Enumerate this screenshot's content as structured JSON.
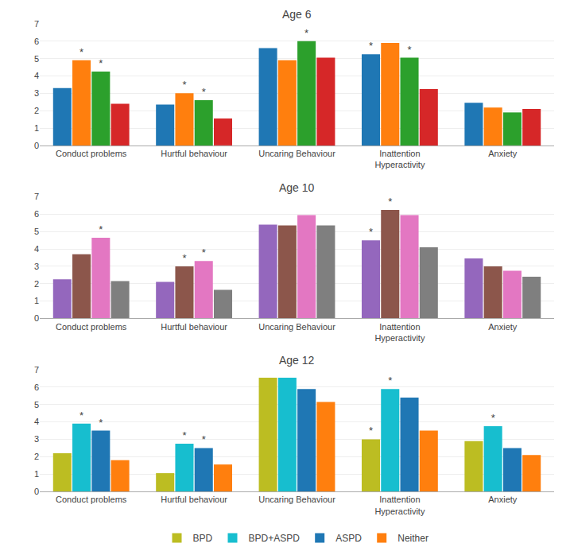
{
  "chart_data": [
    {
      "type": "bar",
      "title": "Age 6",
      "categories": [
        "Conduct problems",
        "Hurtful behaviour",
        "Uncaring Behaviour",
        "Inattention\nHyperactivity",
        "Anxiety"
      ],
      "series": [
        {
          "name": "BPD",
          "values": [
            3.3,
            2.35,
            5.6,
            5.25,
            2.45
          ]
        },
        {
          "name": "BPD+ASPD",
          "values": [
            4.9,
            3.0,
            4.9,
            5.9,
            2.18
          ]
        },
        {
          "name": "ASPD",
          "values": [
            4.25,
            2.6,
            6.0,
            5.05,
            1.9
          ]
        },
        {
          "name": "Neither",
          "values": [
            2.4,
            1.55,
            5.05,
            3.25,
            2.1
          ]
        }
      ],
      "annotations": [
        {
          "text": "*",
          "category": "Conduct problems",
          "series": "BPD+ASPD"
        },
        {
          "text": "*",
          "category": "Conduct problems",
          "series": "ASPD"
        },
        {
          "text": "*",
          "category": "Hurtful behaviour",
          "series": "BPD+ASPD"
        },
        {
          "text": "*",
          "category": "Hurtful behaviour",
          "series": "ASPD"
        },
        {
          "text": "*",
          "category": "Uncaring Behaviour",
          "series": "ASPD"
        },
        {
          "text": "*",
          "category": "Inattention\nHyperactivity",
          "series": "BPD"
        },
        {
          "text": "*",
          "category": "Inattention\nHyperactivity",
          "series": "ASPD"
        }
      ],
      "ylim": [
        0,
        7
      ],
      "yticks": [
        0,
        1,
        2,
        3,
        4,
        5,
        6,
        7
      ],
      "grid": true
    },
    {
      "type": "bar",
      "title": "Age 10",
      "categories": [
        "Conduct problems",
        "Hurtful behaviour",
        "Uncaring Behaviour",
        "Inattention\nHyperactivity",
        "Anxiety"
      ],
      "series": [
        {
          "name": "BPD",
          "values": [
            2.25,
            2.1,
            5.4,
            4.5,
            3.45
          ]
        },
        {
          "name": "BPD+ASPD",
          "values": [
            3.7,
            3.0,
            5.35,
            6.25,
            3.0
          ]
        },
        {
          "name": "ASPD",
          "values": [
            4.65,
            3.3,
            5.95,
            5.95,
            2.75
          ]
        },
        {
          "name": "Neither",
          "values": [
            2.15,
            1.65,
            5.35,
            4.1,
            2.4
          ]
        }
      ],
      "annotations": [
        {
          "text": "*",
          "category": "Conduct problems",
          "series": "ASPD"
        },
        {
          "text": "*",
          "category": "Hurtful behaviour",
          "series": "BPD+ASPD"
        },
        {
          "text": "*",
          "category": "Hurtful behaviour",
          "series": "ASPD"
        },
        {
          "text": "*",
          "category": "Inattention\nHyperactivity",
          "series": "BPD"
        },
        {
          "text": "*",
          "category": "Inattention\nHyperactivity",
          "series": "BPD+ASPD"
        }
      ],
      "ylim": [
        0,
        7
      ],
      "yticks": [
        0,
        1,
        2,
        3,
        4,
        5,
        6,
        7
      ],
      "grid": true
    },
    {
      "type": "bar",
      "title": "Age 12",
      "categories": [
        "Conduct problems",
        "Hurtful behaviour",
        "Uncaring Behaviour",
        "Inattention\nHyperactivity",
        "Anxiety"
      ],
      "series": [
        {
          "name": "BPD",
          "values": [
            2.2,
            1.05,
            6.55,
            3.0,
            2.9
          ]
        },
        {
          "name": "BPD+ASPD",
          "values": [
            3.9,
            2.75,
            6.55,
            5.9,
            3.75
          ]
        },
        {
          "name": "ASPD",
          "values": [
            3.5,
            2.5,
            5.9,
            5.4,
            2.5
          ]
        },
        {
          "name": "Neither",
          "values": [
            1.8,
            1.55,
            5.15,
            3.5,
            2.1
          ]
        }
      ],
      "annotations": [
        {
          "text": "*",
          "category": "Conduct problems",
          "series": "BPD+ASPD"
        },
        {
          "text": "*",
          "category": "Conduct problems",
          "series": "ASPD"
        },
        {
          "text": "*",
          "category": "Hurtful behaviour",
          "series": "BPD+ASPD"
        },
        {
          "text": "*",
          "category": "Hurtful behaviour",
          "series": "ASPD"
        },
        {
          "text": "*",
          "category": "Inattention\nHyperactivity",
          "series": "BPD"
        },
        {
          "text": "*",
          "category": "Inattention\nHyperactivity",
          "series": "BPD+ASPD"
        },
        {
          "text": "*",
          "category": "Anxiety",
          "series": "BPD+ASPD"
        }
      ],
      "ylim": [
        0,
        7
      ],
      "yticks": [
        0,
        1,
        2,
        3,
        4,
        5,
        6,
        7
      ],
      "grid": true,
      "legend": "bottom"
    }
  ]
}
